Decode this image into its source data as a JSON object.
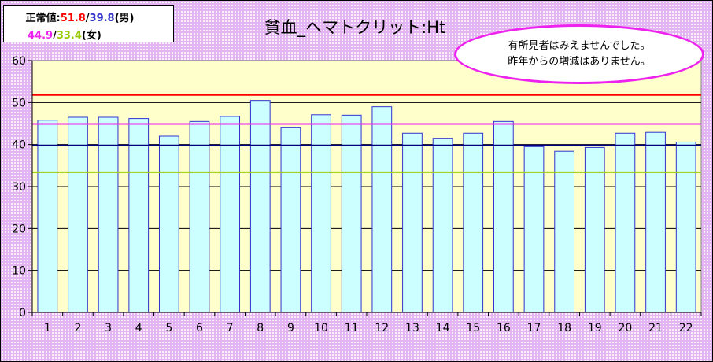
{
  "legend": {
    "male_prefix": "正常値:",
    "male_upper": "51.8",
    "sep1": "/",
    "male_lower": "39.8",
    "male_suffix": "(男)",
    "female_upper": "44.9",
    "sep2": "/",
    "female_lower": "33.4",
    "female_suffix": "(女)"
  },
  "note": {
    "line1": "有所見者はみえませんでした。",
    "line2": "昨年からの増減はありません。"
  },
  "colors": {
    "plot_background": "#ffffcc",
    "bar_fill": "#ccffff",
    "bar_border": "#3333cc",
    "male_upper_line": "#ff0000",
    "male_lower_line": "#000080",
    "female_upper_line": "#ee22ee",
    "female_lower_line": "#99cc00"
  },
  "chart_data": {
    "type": "bar",
    "title": "貧血_ヘマトクリット:Ht",
    "xlabel": "",
    "ylabel": "",
    "ylim": [
      0,
      60
    ],
    "yticks": [
      0,
      10,
      20,
      30,
      40,
      50,
      60
    ],
    "grid": true,
    "categories": [
      "1",
      "2",
      "3",
      "4",
      "5",
      "6",
      "7",
      "8",
      "9",
      "10",
      "11",
      "12",
      "13",
      "14",
      "15",
      "16",
      "17",
      "18",
      "19",
      "20",
      "21",
      "22"
    ],
    "values": [
      45.8,
      46.5,
      46.5,
      46.2,
      42.0,
      45.5,
      46.7,
      50.5,
      44.0,
      47.1,
      47.0,
      49.0,
      42.7,
      41.5,
      42.7,
      45.5,
      39.5,
      38.4,
      39.3,
      42.7,
      42.9,
      40.6
    ],
    "reference_lines": [
      {
        "value": 51.8,
        "color": "#ff0000"
      },
      {
        "value": 39.8,
        "color": "#000080"
      },
      {
        "value": 44.9,
        "color": "#ee22ee"
      },
      {
        "value": 33.4,
        "color": "#99cc00"
      }
    ]
  }
}
